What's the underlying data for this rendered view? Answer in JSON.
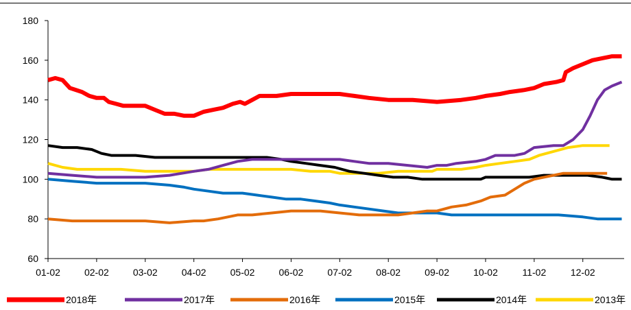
{
  "chart_data": {
    "type": "line",
    "title": "",
    "xlabel": "",
    "ylabel": "",
    "ylim": [
      60,
      180
    ],
    "yticks": [
      60,
      80,
      100,
      120,
      140,
      160,
      180
    ],
    "x": [
      "01-02",
      "02-02",
      "03-02",
      "04-02",
      "05-02",
      "06-02",
      "07-02",
      "08-02",
      "09-02",
      "10-02",
      "11-02",
      "12-02"
    ],
    "xlim": [
      0,
      11.85
    ],
    "grid": false,
    "legend_position": "bottom",
    "series": [
      {
        "name": "2018年",
        "color": "#ff0000",
        "width": 6,
        "points": [
          [
            0,
            150
          ],
          [
            0.15,
            151
          ],
          [
            0.3,
            150
          ],
          [
            0.45,
            146
          ],
          [
            0.7,
            144
          ],
          [
            0.85,
            142
          ],
          [
            1.0,
            141
          ],
          [
            1.15,
            141
          ],
          [
            1.25,
            139
          ],
          [
            1.4,
            138
          ],
          [
            1.55,
            137
          ],
          [
            1.8,
            137
          ],
          [
            2.0,
            137
          ],
          [
            2.2,
            135
          ],
          [
            2.4,
            133
          ],
          [
            2.6,
            133
          ],
          [
            2.8,
            132
          ],
          [
            3.0,
            132
          ],
          [
            3.2,
            134
          ],
          [
            3.4,
            135
          ],
          [
            3.6,
            136
          ],
          [
            3.8,
            138
          ],
          [
            3.95,
            139
          ],
          [
            4.05,
            138
          ],
          [
            4.2,
            140
          ],
          [
            4.35,
            142
          ],
          [
            4.7,
            142
          ],
          [
            5.0,
            143
          ],
          [
            5.5,
            143
          ],
          [
            6.0,
            143
          ],
          [
            6.3,
            142
          ],
          [
            6.6,
            141
          ],
          [
            7.0,
            140
          ],
          [
            7.5,
            140
          ],
          [
            8.0,
            139
          ],
          [
            8.5,
            140
          ],
          [
            8.8,
            141
          ],
          [
            9.0,
            142
          ],
          [
            9.3,
            143
          ],
          [
            9.5,
            144
          ],
          [
            9.8,
            145
          ],
          [
            10.0,
            146
          ],
          [
            10.2,
            148
          ],
          [
            10.45,
            149
          ],
          [
            10.6,
            150
          ],
          [
            10.65,
            154
          ],
          [
            10.8,
            156
          ],
          [
            11.0,
            158
          ],
          [
            11.2,
            160
          ],
          [
            11.4,
            161
          ],
          [
            11.6,
            162
          ],
          [
            11.8,
            162
          ]
        ]
      },
      {
        "name": "2017年",
        "color": "#7030a0",
        "width": 4,
        "points": [
          [
            0,
            103
          ],
          [
            0.5,
            102
          ],
          [
            1.0,
            101
          ],
          [
            1.5,
            101
          ],
          [
            2.0,
            101
          ],
          [
            2.5,
            102
          ],
          [
            3.0,
            104
          ],
          [
            3.3,
            105
          ],
          [
            3.6,
            107
          ],
          [
            3.9,
            109
          ],
          [
            4.2,
            110
          ],
          [
            4.7,
            110
          ],
          [
            5.0,
            110
          ],
          [
            5.5,
            110
          ],
          [
            6.0,
            110
          ],
          [
            6.3,
            109
          ],
          [
            6.6,
            108
          ],
          [
            7.0,
            108
          ],
          [
            7.4,
            107
          ],
          [
            7.8,
            106
          ],
          [
            8.0,
            107
          ],
          [
            8.2,
            107
          ],
          [
            8.4,
            108
          ],
          [
            8.8,
            109
          ],
          [
            9.0,
            110
          ],
          [
            9.2,
            112
          ],
          [
            9.6,
            112
          ],
          [
            9.8,
            113
          ],
          [
            10.0,
            116
          ],
          [
            10.4,
            117
          ],
          [
            10.6,
            117
          ],
          [
            10.8,
            120
          ],
          [
            11.0,
            125
          ],
          [
            11.15,
            132
          ],
          [
            11.3,
            140
          ],
          [
            11.45,
            145
          ],
          [
            11.6,
            147
          ],
          [
            11.8,
            149
          ]
        ]
      },
      {
        "name": "2016年",
        "color": "#e36c0a",
        "width": 4,
        "points": [
          [
            0,
            80
          ],
          [
            0.5,
            79
          ],
          [
            1.0,
            79
          ],
          [
            1.5,
            79
          ],
          [
            2.0,
            79
          ],
          [
            2.5,
            78
          ],
          [
            3.0,
            79
          ],
          [
            3.2,
            79
          ],
          [
            3.5,
            80
          ],
          [
            3.7,
            81
          ],
          [
            3.9,
            82
          ],
          [
            4.2,
            82
          ],
          [
            4.6,
            83
          ],
          [
            5.0,
            84
          ],
          [
            5.2,
            84
          ],
          [
            5.6,
            84
          ],
          [
            6.0,
            83
          ],
          [
            6.4,
            82
          ],
          [
            6.8,
            82
          ],
          [
            7.2,
            82
          ],
          [
            7.5,
            83
          ],
          [
            7.8,
            84
          ],
          [
            8.0,
            84
          ],
          [
            8.3,
            86
          ],
          [
            8.6,
            87
          ],
          [
            8.9,
            89
          ],
          [
            9.1,
            91
          ],
          [
            9.4,
            92
          ],
          [
            9.6,
            95
          ],
          [
            9.8,
            98
          ],
          [
            10.0,
            100
          ],
          [
            10.2,
            101
          ],
          [
            10.4,
            102
          ],
          [
            10.6,
            103
          ],
          [
            10.8,
            103
          ],
          [
            11.0,
            103
          ],
          [
            11.2,
            103
          ],
          [
            11.5,
            103
          ]
        ]
      },
      {
        "name": "2015年",
        "color": "#0070c0",
        "width": 4,
        "points": [
          [
            0,
            100
          ],
          [
            0.5,
            99
          ],
          [
            1.0,
            98
          ],
          [
            1.5,
            98
          ],
          [
            2.0,
            98
          ],
          [
            2.5,
            97
          ],
          [
            2.8,
            96
          ],
          [
            3.0,
            95
          ],
          [
            3.3,
            94
          ],
          [
            3.6,
            93
          ],
          [
            4.0,
            93
          ],
          [
            4.3,
            92
          ],
          [
            4.6,
            91
          ],
          [
            4.9,
            90
          ],
          [
            5.2,
            90
          ],
          [
            5.5,
            89
          ],
          [
            5.8,
            88
          ],
          [
            6.0,
            87
          ],
          [
            6.3,
            86
          ],
          [
            6.6,
            85
          ],
          [
            6.9,
            84
          ],
          [
            7.2,
            83
          ],
          [
            7.5,
            83
          ],
          [
            7.8,
            83
          ],
          [
            8.0,
            83
          ],
          [
            8.3,
            82
          ],
          [
            8.6,
            82
          ],
          [
            9.0,
            82
          ],
          [
            9.5,
            82
          ],
          [
            10.0,
            82
          ],
          [
            10.5,
            82
          ],
          [
            11.0,
            81
          ],
          [
            11.3,
            80
          ],
          [
            11.6,
            80
          ],
          [
            11.8,
            80
          ]
        ]
      },
      {
        "name": "2014年",
        "color": "#000000",
        "width": 4,
        "points": [
          [
            0,
            117
          ],
          [
            0.3,
            116
          ],
          [
            0.6,
            116
          ],
          [
            0.9,
            115
          ],
          [
            1.1,
            113
          ],
          [
            1.3,
            112
          ],
          [
            1.8,
            112
          ],
          [
            2.2,
            111
          ],
          [
            2.6,
            111
          ],
          [
            3.0,
            111
          ],
          [
            3.5,
            111
          ],
          [
            4.0,
            111
          ],
          [
            4.5,
            111
          ],
          [
            4.8,
            110
          ],
          [
            5.0,
            109
          ],
          [
            5.3,
            108
          ],
          [
            5.6,
            107
          ],
          [
            5.9,
            106
          ],
          [
            6.2,
            104
          ],
          [
            6.5,
            103
          ],
          [
            6.8,
            102
          ],
          [
            7.1,
            101
          ],
          [
            7.4,
            101
          ],
          [
            7.7,
            100
          ],
          [
            8.0,
            100
          ],
          [
            8.3,
            100
          ],
          [
            8.6,
            100
          ],
          [
            8.9,
            100
          ],
          [
            9.0,
            101
          ],
          [
            9.3,
            101
          ],
          [
            9.6,
            101
          ],
          [
            9.9,
            101
          ],
          [
            10.2,
            102
          ],
          [
            10.5,
            102
          ],
          [
            10.8,
            102
          ],
          [
            11.1,
            102
          ],
          [
            11.4,
            101
          ],
          [
            11.6,
            100
          ],
          [
            11.8,
            100
          ]
        ]
      },
      {
        "name": "2013年",
        "color": "#ffd700",
        "width": 4,
        "points": [
          [
            0,
            108
          ],
          [
            0.3,
            106
          ],
          [
            0.6,
            105
          ],
          [
            1.0,
            105
          ],
          [
            1.5,
            105
          ],
          [
            2.0,
            104
          ],
          [
            2.3,
            104
          ],
          [
            2.6,
            104
          ],
          [
            3.0,
            104
          ],
          [
            3.3,
            105
          ],
          [
            3.6,
            105
          ],
          [
            4.0,
            105
          ],
          [
            4.5,
            105
          ],
          [
            5.0,
            105
          ],
          [
            5.4,
            104
          ],
          [
            5.8,
            104
          ],
          [
            6.0,
            103
          ],
          [
            6.4,
            103
          ],
          [
            6.8,
            103
          ],
          [
            7.2,
            104
          ],
          [
            7.6,
            104
          ],
          [
            7.9,
            104
          ],
          [
            8.0,
            105
          ],
          [
            8.2,
            105
          ],
          [
            8.5,
            105
          ],
          [
            8.8,
            106
          ],
          [
            9.0,
            107
          ],
          [
            9.3,
            108
          ],
          [
            9.6,
            109
          ],
          [
            9.9,
            110
          ],
          [
            10.1,
            112
          ],
          [
            10.4,
            114
          ],
          [
            10.7,
            116
          ],
          [
            11.0,
            117
          ],
          [
            11.3,
            117
          ],
          [
            11.55,
            117
          ]
        ]
      }
    ]
  }
}
